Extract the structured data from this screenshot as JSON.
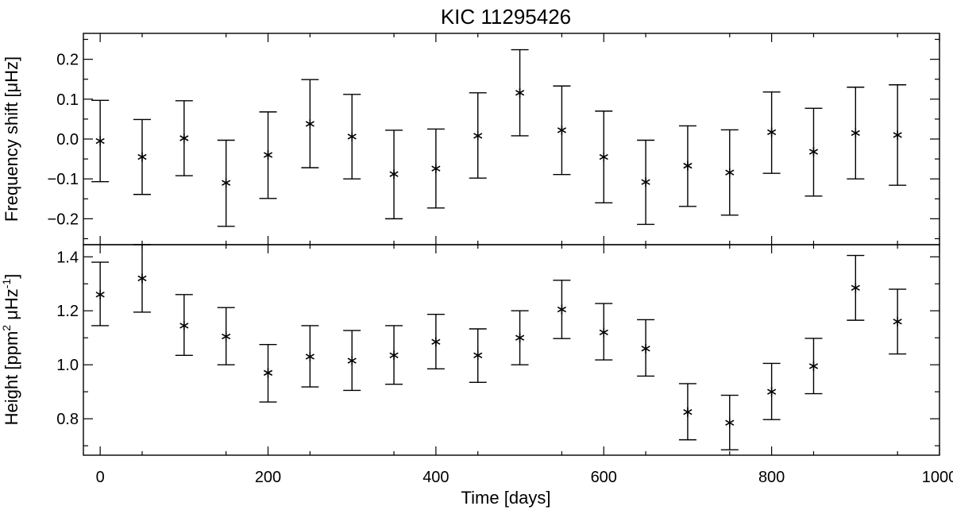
{
  "chart_data": [
    {
      "type": "scatter",
      "title": "KIC 11295426",
      "xlabel": "",
      "ylabel": "Frequency shift [μHz]",
      "xlim": [
        -20,
        1000
      ],
      "ylim": [
        -0.265,
        0.265
      ],
      "xticks": [
        0,
        200,
        400,
        600,
        800,
        1000
      ],
      "yticks": [
        -0.2,
        -0.1,
        0.0,
        0.1,
        0.2
      ],
      "ytick_labels": [
        "−0.2",
        "−0.1",
        "0.0",
        "0.1",
        "0.2"
      ],
      "show_xtick_labels": false,
      "marker": "asterisk",
      "error_bars": true,
      "grid": false,
      "series": [
        {
          "x": [
            0,
            50,
            100,
            150,
            200,
            250,
            300,
            350,
            400,
            450,
            500,
            550,
            600,
            650,
            700,
            750,
            800,
            850,
            900,
            950
          ],
          "y": [
            -0.005,
            -0.045,
            0.002,
            -0.11,
            -0.04,
            0.038,
            0.006,
            -0.088,
            -0.074,
            0.008,
            0.116,
            0.022,
            -0.045,
            -0.108,
            -0.067,
            -0.084,
            0.017,
            -0.032,
            0.015,
            0.01
          ],
          "yerr_low": [
            -0.107,
            -0.139,
            -0.092,
            -0.219,
            -0.149,
            -0.072,
            -0.1,
            -0.2,
            -0.173,
            -0.098,
            0.008,
            -0.089,
            -0.16,
            -0.214,
            -0.169,
            -0.191,
            -0.086,
            -0.143,
            -0.1,
            -0.116
          ],
          "yerr_high": [
            0.097,
            0.049,
            0.096,
            -0.003,
            0.068,
            0.149,
            0.112,
            0.022,
            0.025,
            0.116,
            0.224,
            0.133,
            0.07,
            -0.003,
            0.033,
            0.023,
            0.118,
            0.077,
            0.13,
            0.136
          ]
        }
      ]
    },
    {
      "type": "scatter",
      "title": "",
      "xlabel": "Time [days]",
      "ylabel": "Height [ppm",
      "ylabel_sup1": "2",
      "ylabel_mid": " μHz",
      "ylabel_sup2": "-1",
      "ylabel_end": "]",
      "xlim": [
        -20,
        1000
      ],
      "ylim": [
        0.665,
        1.445
      ],
      "xticks": [
        0,
        200,
        400,
        600,
        800,
        1000
      ],
      "xtick_labels": [
        "0",
        "200",
        "400",
        "600",
        "800",
        "1000"
      ],
      "yticks": [
        0.8,
        1.0,
        1.2,
        1.4
      ],
      "ytick_labels": [
        "0.8",
        "1.0",
        "1.2",
        "1.4"
      ],
      "show_xtick_labels": true,
      "marker": "asterisk",
      "error_bars": true,
      "grid": false,
      "series": [
        {
          "x": [
            0,
            50,
            100,
            150,
            200,
            250,
            300,
            350,
            400,
            450,
            500,
            550,
            600,
            650,
            700,
            750,
            800,
            850,
            900,
            950
          ],
          "y": [
            1.26,
            1.32,
            1.145,
            1.105,
            0.97,
            1.03,
            1.015,
            1.035,
            1.085,
            1.035,
            1.1,
            1.205,
            1.12,
            1.06,
            0.825,
            0.785,
            0.9,
            0.995,
            1.285,
            1.16
          ],
          "yerr_low": [
            1.145,
            1.195,
            1.035,
            1.0,
            0.862,
            0.918,
            0.905,
            0.928,
            0.985,
            0.935,
            1.0,
            1.097,
            1.018,
            0.958,
            0.722,
            0.685,
            0.797,
            0.893,
            1.165,
            1.04
          ],
          "yerr_high": [
            1.38,
            1.445,
            1.26,
            1.212,
            1.075,
            1.145,
            1.127,
            1.145,
            1.187,
            1.133,
            1.2,
            1.313,
            1.227,
            1.167,
            0.93,
            0.887,
            1.005,
            1.098,
            1.405,
            1.28
          ]
        }
      ]
    }
  ]
}
